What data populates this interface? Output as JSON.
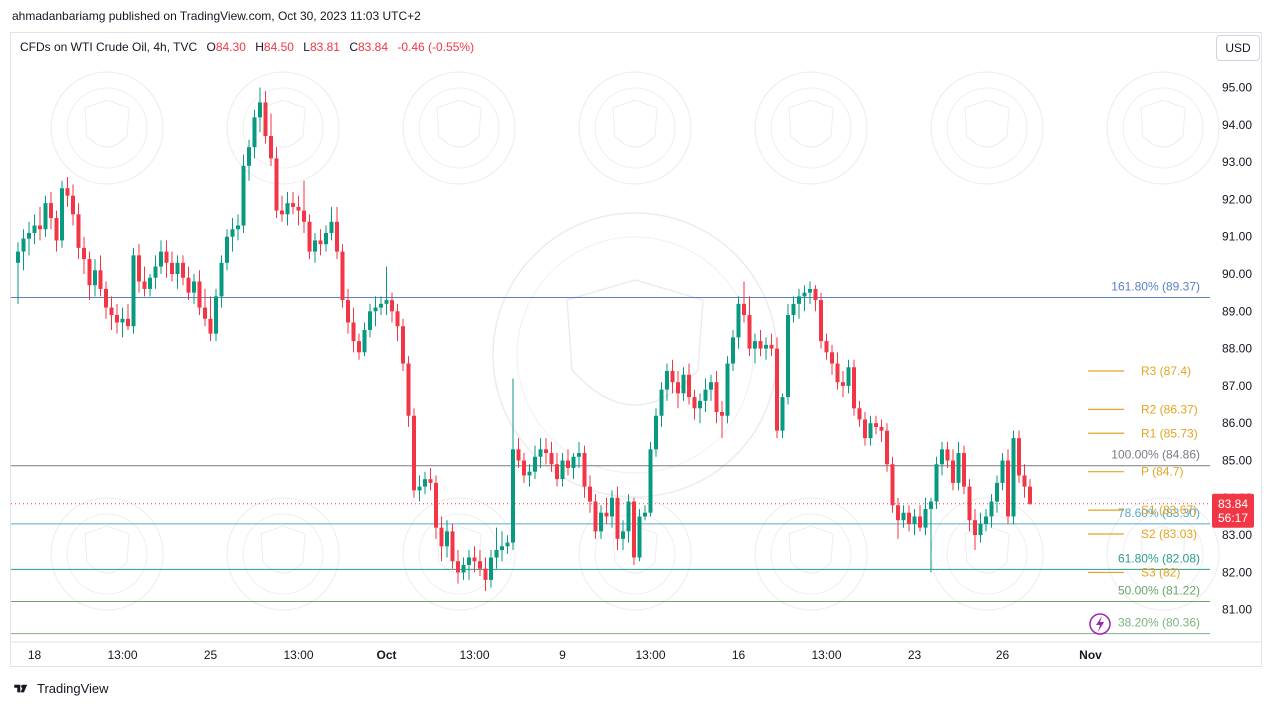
{
  "header": {
    "published": "ahmadanbariamg published on TradingView.com, Oct 30, 2023 11:03 UTC+2",
    "symbol": "CFDs on WTI Crude Oil, 4h, TVC",
    "o_label": "O",
    "o_value": "84.30",
    "h_label": "H",
    "h_value": "84.50",
    "l_label": "L",
    "l_value": "83.81",
    "c_label": "C",
    "c_value": "83.84",
    "change": "-0.46 (-0.55%)"
  },
  "currency_button": "USD",
  "footer": {
    "brand": "TradingView"
  },
  "colors": {
    "up": "#089981",
    "down": "#f23645",
    "fib": "#5b7fc7",
    "fib_gray": "#787b86",
    "fib_green": "#6ca56c",
    "pivot": "#e3a520",
    "price_tag": "#f23645"
  },
  "chart_data": {
    "type": "candlestick",
    "title": "CFDs on WTI Crude Oil, 4h, TVC",
    "ylim": [
      80.35,
      95.45
    ],
    "y_ticks": [
      {
        "value": 95,
        "label": "95.00"
      },
      {
        "value": 94,
        "label": "94.00"
      },
      {
        "value": 93,
        "label": "93.00"
      },
      {
        "value": 92,
        "label": "92.00"
      },
      {
        "value": 91,
        "label": "91.00"
      },
      {
        "value": 90,
        "label": "90.00"
      },
      {
        "value": 89,
        "label": "89.00"
      },
      {
        "value": 88,
        "label": "88.00"
      },
      {
        "value": 87,
        "label": "87.00"
      },
      {
        "value": 86,
        "label": "86.00"
      },
      {
        "value": 85,
        "label": "85.00"
      },
      {
        "value": 84,
        "label": "84.00"
      },
      {
        "value": 83,
        "label": "83.00"
      },
      {
        "value": 82,
        "label": "82.00"
      },
      {
        "value": 81,
        "label": "81.00"
      }
    ],
    "x_ticks": [
      {
        "bar": 3,
        "label": "18",
        "bold": false
      },
      {
        "bar": 19,
        "label": "13:00",
        "bold": false
      },
      {
        "bar": 35,
        "label": "25",
        "bold": false
      },
      {
        "bar": 51,
        "label": "13:00",
        "bold": false
      },
      {
        "bar": 67,
        "label": "Oct",
        "bold": true
      },
      {
        "bar": 83,
        "label": "13:00",
        "bold": false
      },
      {
        "bar": 99,
        "label": "9",
        "bold": false
      },
      {
        "bar": 115,
        "label": "13:00",
        "bold": false
      },
      {
        "bar": 131,
        "label": "16",
        "bold": false
      },
      {
        "bar": 147,
        "label": "13:00",
        "bold": false
      },
      {
        "bar": 163,
        "label": "23",
        "bold": false
      },
      {
        "bar": 179,
        "label": "26",
        "bold": false
      },
      {
        "bar": 195,
        "label": "Nov",
        "bold": true
      }
    ],
    "candles": [
      [
        90.3,
        90.85,
        89.2,
        90.6
      ],
      [
        90.6,
        91.2,
        90.1,
        90.95
      ],
      [
        90.95,
        91.4,
        90.5,
        91.1
      ],
      [
        91.1,
        91.6,
        90.8,
        91.3
      ],
      [
        91.3,
        91.8,
        90.9,
        91.2
      ],
      [
        91.2,
        92.1,
        91.0,
        91.9
      ],
      [
        91.9,
        92.2,
        91.2,
        91.5
      ],
      [
        91.5,
        91.7,
        90.6,
        90.9
      ],
      [
        90.9,
        92.5,
        90.7,
        92.3
      ],
      [
        92.3,
        92.6,
        91.8,
        92.1
      ],
      [
        92.1,
        92.4,
        91.3,
        91.6
      ],
      [
        91.6,
        91.9,
        90.4,
        90.7
      ],
      [
        90.7,
        91.0,
        90.0,
        90.4
      ],
      [
        90.4,
        90.6,
        89.3,
        89.7
      ],
      [
        89.7,
        90.4,
        89.4,
        90.1
      ],
      [
        90.1,
        90.5,
        89.4,
        89.6
      ],
      [
        89.6,
        89.8,
        88.8,
        89.1
      ],
      [
        89.1,
        89.4,
        88.5,
        88.9
      ],
      [
        88.9,
        89.2,
        88.4,
        88.7
      ],
      [
        88.7,
        89.1,
        88.3,
        88.8
      ],
      [
        88.8,
        89.2,
        88.5,
        88.6
      ],
      [
        88.6,
        90.7,
        88.4,
        90.5
      ],
      [
        90.5,
        90.8,
        89.5,
        89.8
      ],
      [
        89.8,
        90.2,
        89.4,
        89.6
      ],
      [
        89.6,
        90.0,
        89.4,
        89.9
      ],
      [
        89.9,
        90.5,
        89.6,
        90.2
      ],
      [
        90.2,
        90.9,
        90.0,
        90.6
      ],
      [
        90.6,
        90.9,
        89.9,
        90.3
      ],
      [
        90.3,
        90.6,
        89.8,
        90.0
      ],
      [
        90.0,
        90.5,
        89.6,
        90.3
      ],
      [
        90.3,
        90.5,
        89.7,
        89.9
      ],
      [
        89.9,
        90.2,
        89.3,
        89.5
      ],
      [
        89.5,
        90.0,
        89.2,
        89.8
      ],
      [
        89.8,
        90.1,
        88.9,
        89.1
      ],
      [
        89.1,
        89.6,
        88.6,
        88.8
      ],
      [
        88.8,
        89.4,
        88.2,
        88.4
      ],
      [
        88.4,
        89.6,
        88.2,
        89.4
      ],
      [
        89.4,
        90.5,
        89.1,
        90.3
      ],
      [
        90.3,
        91.2,
        90.1,
        91.0
      ],
      [
        91.0,
        91.5,
        90.6,
        91.2
      ],
      [
        91.2,
        91.6,
        90.9,
        91.3
      ],
      [
        91.3,
        93.2,
        91.1,
        92.9
      ],
      [
        92.9,
        93.6,
        92.5,
        93.4
      ],
      [
        93.4,
        94.4,
        93.1,
        94.2
      ],
      [
        94.2,
        95.0,
        93.8,
        94.6
      ],
      [
        94.6,
        94.9,
        93.5,
        93.7
      ],
      [
        93.7,
        94.3,
        92.9,
        93.1
      ],
      [
        93.1,
        93.4,
        91.5,
        91.7
      ],
      [
        91.7,
        92.1,
        91.4,
        91.6
      ],
      [
        91.6,
        92.2,
        91.3,
        91.9
      ],
      [
        91.9,
        92.2,
        91.6,
        91.8
      ],
      [
        91.8,
        92.1,
        91.3,
        91.7
      ],
      [
        91.7,
        92.5,
        91.1,
        91.4
      ],
      [
        91.4,
        91.6,
        90.4,
        90.6
      ],
      [
        90.6,
        91.1,
        90.3,
        90.9
      ],
      [
        90.9,
        91.2,
        90.5,
        90.8
      ],
      [
        90.8,
        91.3,
        90.6,
        91.1
      ],
      [
        91.1,
        91.8,
        90.9,
        91.4
      ],
      [
        91.4,
        91.8,
        90.4,
        90.6
      ],
      [
        90.6,
        90.8,
        89.1,
        89.3
      ],
      [
        89.3,
        89.6,
        88.4,
        88.7
      ],
      [
        88.7,
        89.1,
        87.9,
        88.2
      ],
      [
        88.2,
        88.4,
        87.7,
        87.9
      ],
      [
        87.9,
        88.7,
        87.8,
        88.5
      ],
      [
        88.5,
        89.2,
        88.3,
        89.0
      ],
      [
        89.0,
        89.4,
        88.6,
        89.1
      ],
      [
        89.1,
        89.4,
        88.9,
        89.2
      ],
      [
        89.2,
        90.2,
        88.9,
        89.3
      ],
      [
        89.3,
        89.5,
        88.7,
        89.0
      ],
      [
        89.0,
        89.2,
        88.2,
        88.6
      ],
      [
        88.6,
        88.8,
        87.4,
        87.6
      ],
      [
        87.6,
        87.8,
        85.9,
        86.2
      ],
      [
        86.2,
        86.4,
        84.0,
        84.2
      ],
      [
        84.2,
        84.6,
        83.9,
        84.3
      ],
      [
        84.3,
        84.7,
        84.1,
        84.5
      ],
      [
        84.5,
        84.8,
        84.2,
        84.4
      ],
      [
        84.4,
        84.6,
        82.9,
        83.2
      ],
      [
        83.2,
        83.5,
        82.3,
        82.7
      ],
      [
        82.7,
        83.4,
        82.4,
        83.1
      ],
      [
        83.1,
        83.3,
        82.1,
        82.3
      ],
      [
        82.3,
        82.6,
        81.7,
        82.0
      ],
      [
        82.0,
        82.4,
        81.8,
        82.2
      ],
      [
        82.2,
        82.6,
        81.8,
        82.4
      ],
      [
        82.4,
        82.7,
        82.0,
        82.3
      ],
      [
        82.3,
        82.6,
        81.9,
        82.1
      ],
      [
        82.1,
        82.4,
        81.5,
        81.8
      ],
      [
        81.8,
        82.6,
        81.6,
        82.4
      ],
      [
        82.4,
        83.2,
        82.1,
        82.6
      ],
      [
        82.6,
        83.1,
        82.3,
        82.7
      ],
      [
        82.7,
        83.0,
        82.5,
        82.8
      ],
      [
        82.8,
        87.2,
        82.6,
        85.3
      ],
      [
        85.3,
        85.6,
        84.8,
        85.0
      ],
      [
        85.0,
        85.2,
        84.4,
        84.6
      ],
      [
        84.6,
        84.9,
        84.3,
        84.7
      ],
      [
        84.7,
        85.4,
        84.5,
        85.1
      ],
      [
        85.1,
        85.6,
        84.8,
        85.3
      ],
      [
        85.3,
        85.6,
        84.9,
        85.2
      ],
      [
        85.2,
        85.5,
        84.7,
        84.9
      ],
      [
        84.9,
        85.2,
        84.3,
        84.5
      ],
      [
        84.5,
        85.2,
        84.3,
        85.0
      ],
      [
        85.0,
        85.3,
        84.6,
        84.8
      ],
      [
        84.8,
        85.2,
        84.5,
        85.1
      ],
      [
        85.1,
        85.5,
        84.8,
        85.2
      ],
      [
        85.2,
        85.4,
        84.0,
        84.3
      ],
      [
        84.3,
        84.6,
        83.6,
        83.9
      ],
      [
        83.9,
        84.1,
        82.9,
        83.1
      ],
      [
        83.1,
        83.8,
        82.9,
        83.6
      ],
      [
        83.6,
        84.0,
        83.3,
        83.5
      ],
      [
        83.5,
        84.2,
        83.2,
        84.0
      ],
      [
        84.0,
        84.3,
        82.6,
        82.9
      ],
      [
        82.9,
        83.4,
        82.6,
        83.1
      ],
      [
        83.1,
        84.1,
        82.8,
        83.9
      ],
      [
        83.9,
        84.0,
        82.2,
        82.4
      ],
      [
        82.4,
        83.7,
        82.3,
        83.5
      ],
      [
        83.5,
        83.8,
        83.4,
        83.6
      ],
      [
        83.6,
        85.5,
        83.5,
        85.3
      ],
      [
        85.3,
        86.4,
        85.1,
        86.2
      ],
      [
        86.2,
        87.1,
        85.9,
        86.9
      ],
      [
        86.9,
        87.6,
        86.6,
        87.4
      ],
      [
        87.4,
        87.7,
        86.8,
        87.1
      ],
      [
        87.1,
        87.4,
        86.4,
        86.8
      ],
      [
        86.8,
        87.5,
        86.6,
        87.3
      ],
      [
        87.3,
        87.6,
        86.5,
        86.7
      ],
      [
        86.7,
        86.9,
        86.1,
        86.4
      ],
      [
        86.4,
        86.8,
        86.0,
        86.6
      ],
      [
        86.6,
        87.2,
        86.3,
        86.9
      ],
      [
        86.9,
        87.3,
        86.6,
        87.1
      ],
      [
        87.1,
        87.4,
        86.0,
        86.3
      ],
      [
        86.3,
        86.6,
        85.6,
        86.2
      ],
      [
        86.2,
        87.8,
        86.0,
        87.6
      ],
      [
        87.6,
        88.5,
        87.4,
        88.3
      ],
      [
        88.3,
        89.4,
        88.0,
        89.2
      ],
      [
        89.2,
        89.8,
        88.7,
        88.9
      ],
      [
        88.9,
        89.4,
        87.8,
        88.0
      ],
      [
        88.0,
        88.4,
        87.6,
        88.2
      ],
      [
        88.2,
        88.5,
        87.8,
        88.0
      ],
      [
        88.0,
        88.3,
        87.7,
        88.1
      ],
      [
        88.1,
        88.4,
        87.8,
        88.0
      ],
      [
        88.0,
        88.3,
        85.6,
        85.8
      ],
      [
        85.8,
        86.8,
        85.6,
        86.7
      ],
      [
        86.7,
        89.2,
        86.5,
        88.9
      ],
      [
        88.9,
        89.4,
        88.7,
        89.2
      ],
      [
        89.2,
        89.6,
        88.8,
        89.4
      ],
      [
        89.4,
        89.7,
        89.0,
        89.5
      ],
      [
        89.5,
        89.8,
        89.2,
        89.6
      ],
      [
        89.6,
        89.7,
        89.0,
        89.3
      ],
      [
        89.3,
        89.5,
        88.0,
        88.2
      ],
      [
        88.2,
        88.4,
        87.7,
        87.9
      ],
      [
        87.9,
        88.1,
        87.3,
        87.6
      ],
      [
        87.6,
        87.9,
        86.9,
        87.1
      ],
      [
        87.1,
        87.4,
        86.7,
        87.0
      ],
      [
        87.0,
        87.7,
        86.8,
        87.5
      ],
      [
        87.5,
        87.7,
        86.2,
        86.4
      ],
      [
        86.4,
        86.6,
        85.9,
        86.1
      ],
      [
        86.1,
        86.3,
        85.4,
        85.6
      ],
      [
        85.6,
        86.2,
        85.4,
        86.0
      ],
      [
        86.0,
        86.2,
        85.7,
        85.9
      ],
      [
        85.9,
        86.1,
        85.5,
        85.8
      ],
      [
        85.8,
        86.0,
        84.7,
        84.9
      ],
      [
        84.9,
        85.1,
        83.6,
        83.8
      ],
      [
        83.8,
        84.0,
        82.9,
        83.4
      ],
      [
        83.4,
        83.8,
        83.2,
        83.6
      ],
      [
        83.6,
        83.8,
        83.1,
        83.3
      ],
      [
        83.3,
        83.7,
        83.0,
        83.5
      ],
      [
        83.5,
        83.8,
        83.1,
        83.2
      ],
      [
        83.2,
        84.0,
        83.0,
        83.7
      ],
      [
        83.7,
        84.0,
        82.0,
        83.9
      ],
      [
        83.9,
        85.1,
        83.7,
        84.9
      ],
      [
        84.9,
        85.5,
        84.6,
        85.3
      ],
      [
        85.3,
        85.5,
        84.8,
        85.0
      ],
      [
        85.0,
        85.3,
        84.2,
        84.4
      ],
      [
        84.4,
        85.5,
        84.2,
        85.2
      ],
      [
        85.2,
        85.4,
        84.1,
        84.3
      ],
      [
        84.3,
        84.5,
        83.1,
        83.4
      ],
      [
        83.4,
        83.7,
        82.6,
        83.0
      ],
      [
        83.0,
        83.6,
        82.8,
        83.3
      ],
      [
        83.3,
        83.7,
        83.1,
        83.5
      ],
      [
        83.5,
        84.1,
        83.2,
        83.9
      ],
      [
        83.9,
        84.6,
        83.6,
        84.4
      ],
      [
        84.4,
        85.2,
        84.2,
        85.0
      ],
      [
        85.0,
        85.3,
        83.3,
        83.5
      ],
      [
        83.5,
        85.8,
        83.3,
        85.6
      ],
      [
        85.6,
        85.8,
        84.4,
        84.6
      ],
      [
        84.6,
        84.9,
        84.0,
        84.3
      ],
      [
        84.3,
        84.5,
        83.81,
        83.84
      ]
    ],
    "horizontal_lines": [
      {
        "price": 89.37,
        "label": "161.80% (89.37)",
        "color": "#5b7fc7"
      },
      {
        "price": 84.86,
        "label": "100.00% (84.86)",
        "color": "#787b86"
      },
      {
        "price": 83.3,
        "label": "78.60% (83.30)",
        "color": "#5aa9c9"
      },
      {
        "price": 82.08,
        "label": "61.80% (82.08)",
        "color": "#2a9d8f"
      },
      {
        "price": 81.22,
        "label": "50.00% (81.22)",
        "color": "#6ca56c"
      },
      {
        "price": 80.36,
        "label": "38.20% (80.36)",
        "color": "#7fb27f"
      }
    ],
    "pivot_levels": [
      {
        "price": 87.4,
        "label": "R3 (87.4)"
      },
      {
        "price": 86.37,
        "label": "R2 (86.37)"
      },
      {
        "price": 85.73,
        "label": "R1 (85.73)"
      },
      {
        "price": 84.7,
        "label": "P (84.7)"
      },
      {
        "price": 83.67,
        "label": "S1 (83.67)"
      },
      {
        "price": 83.03,
        "label": "S2 (83.03)"
      },
      {
        "price": 82.0,
        "label": "S3 (82)"
      }
    ],
    "last_price": {
      "price": 83.84,
      "label": "83.84",
      "countdown": "56:17"
    }
  }
}
